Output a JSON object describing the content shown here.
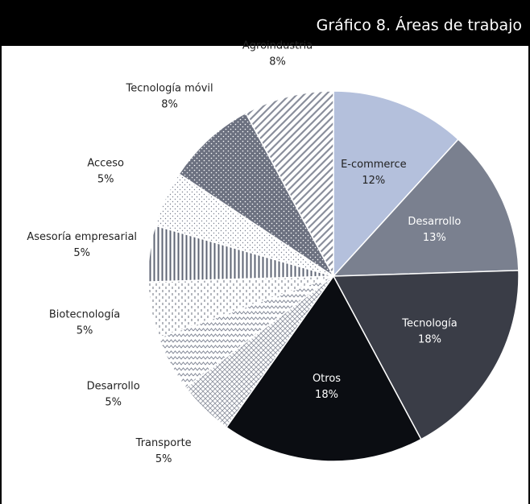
{
  "chart_data": {
    "type": "pie",
    "title": "Gráfico 8. Áreas de trabajo",
    "categories": [
      "E-commerce",
      "Desarrollo",
      "Tecnología",
      "Otros",
      "Transporte",
      "Desarrollo",
      "Biotecnología",
      "Asesoría empresarial",
      "Acceso",
      "Tecnología móvil",
      "Agroindustria"
    ],
    "values": [
      12,
      13,
      18,
      18,
      5,
      5,
      5,
      5,
      5,
      8,
      8
    ],
    "value_labels": [
      "12%",
      "13%",
      "18%",
      "18%",
      "5%",
      "5%",
      "5%",
      "5%",
      "5%",
      "8%",
      "8%"
    ],
    "colors": [
      "#b4c0dc",
      "#7a808f",
      "#3a3d47",
      "#0b0d12",
      "url(#p-cross)",
      "url(#p-zig)",
      "url(#p-dash)",
      "url(#p-vline)",
      "url(#p-dot)",
      "url(#p-dotdark)",
      "url(#p-diag)"
    ]
  }
}
